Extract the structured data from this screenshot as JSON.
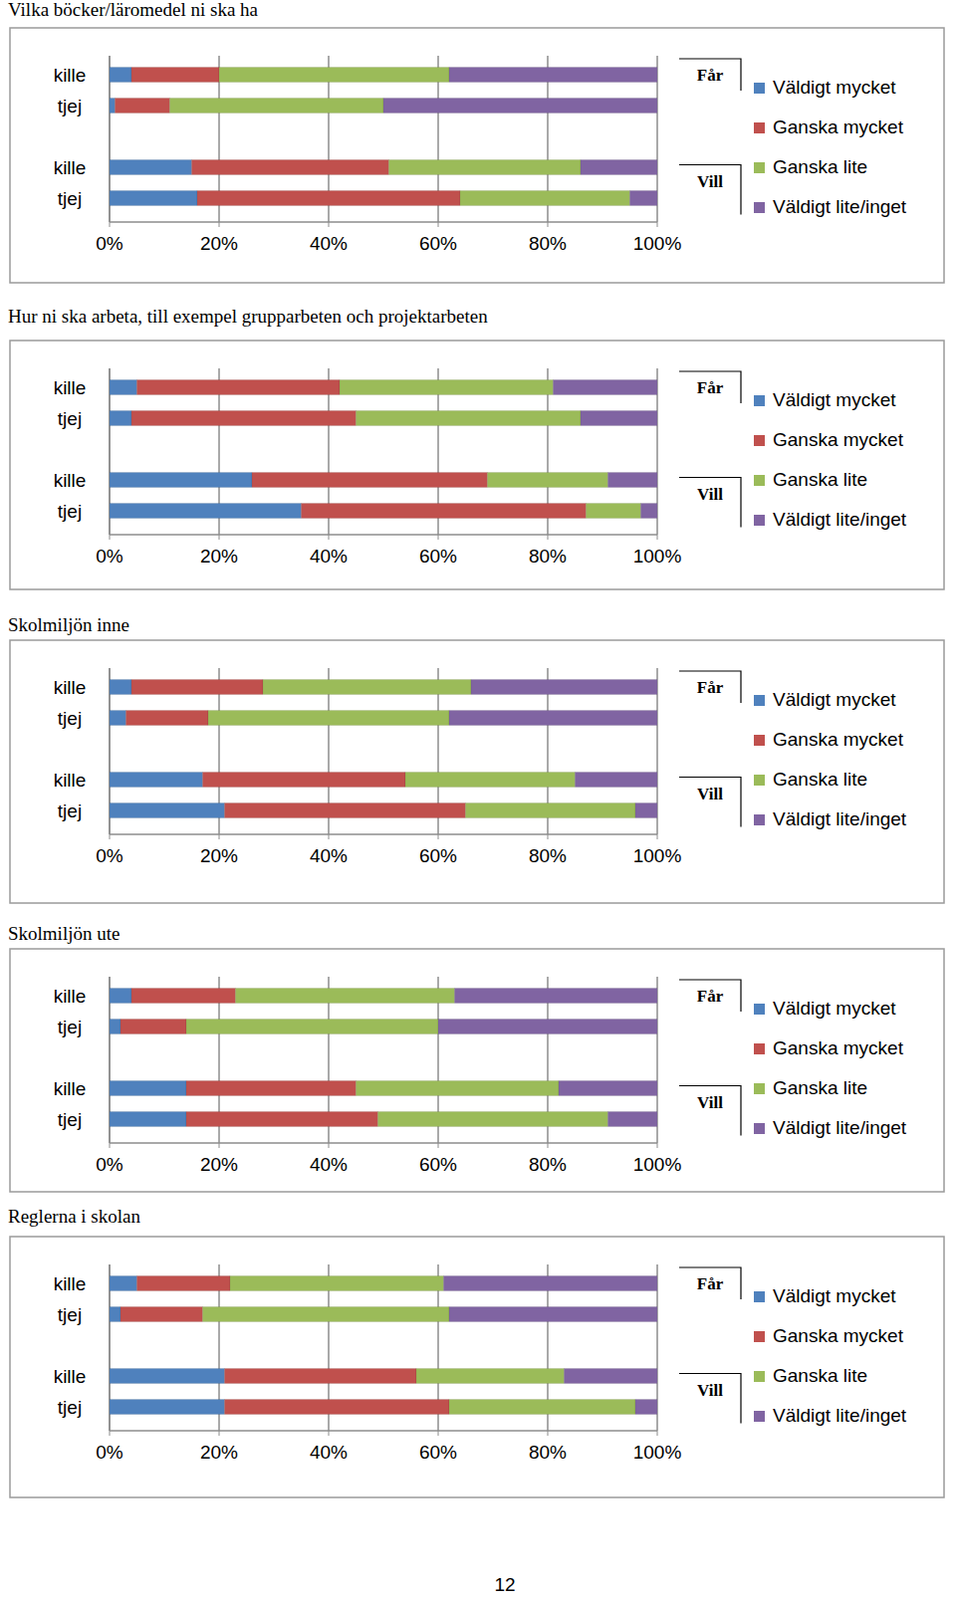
{
  "chart_data": [
    {
      "type": "bar",
      "title": "Vilka böcker/läromedel ni ska ha",
      "orientation": "horizontal",
      "stacked": true,
      "grid": true,
      "legend": "right",
      "categories": [
        "kille",
        "tjej",
        null,
        "kille",
        "tjej"
      ],
      "annotations": [
        "Får",
        "Vill"
      ],
      "series": [
        {
          "name": "Väldigt mycket",
          "color": "#4f81bd",
          "values": [
            4,
            1,
            null,
            15,
            16
          ]
        },
        {
          "name": "Ganska mycket",
          "color": "#c0504d",
          "values": [
            16,
            10,
            null,
            36,
            48
          ]
        },
        {
          "name": "Ganska lite",
          "color": "#9bbb59",
          "values": [
            42,
            39,
            null,
            35,
            31
          ]
        },
        {
          "name": "Väldigt lite/inget",
          "color": "#8064a2",
          "values": [
            38,
            50,
            null,
            14,
            5
          ]
        }
      ],
      "xlim": [
        0,
        100
      ],
      "xticks": [
        {
          "value": 0,
          "label": "0%"
        },
        {
          "value": 20,
          "label": "20%"
        },
        {
          "value": 40,
          "label": "40%"
        },
        {
          "value": 60,
          "label": "60%"
        },
        {
          "value": 80,
          "label": "80%"
        },
        {
          "value": 100,
          "label": "100%"
        }
      ]
    },
    {
      "type": "bar",
      "title": "Hur ni ska arbeta, till exempel grupparbeten och projektarbeten",
      "orientation": "horizontal",
      "stacked": true,
      "grid": true,
      "legend": "right",
      "categories": [
        "kille",
        "tjej",
        null,
        "kille",
        "tjej"
      ],
      "annotations": [
        "Får",
        "Vill"
      ],
      "series": [
        {
          "name": "Väldigt mycket",
          "color": "#4f81bd",
          "values": [
            5,
            4,
            null,
            26,
            35
          ]
        },
        {
          "name": "Ganska mycket",
          "color": "#c0504d",
          "values": [
            37,
            41,
            null,
            43,
            52
          ]
        },
        {
          "name": "Ganska lite",
          "color": "#9bbb59",
          "values": [
            39,
            41,
            null,
            22,
            10
          ]
        },
        {
          "name": "Väldigt lite/inget",
          "color": "#8064a2",
          "values": [
            19,
            14,
            null,
            9,
            3
          ]
        }
      ],
      "xlim": [
        0,
        100
      ],
      "xticks": [
        {
          "value": 0,
          "label": "0%"
        },
        {
          "value": 20,
          "label": "20%"
        },
        {
          "value": 40,
          "label": "40%"
        },
        {
          "value": 60,
          "label": "60%"
        },
        {
          "value": 80,
          "label": "80%"
        },
        {
          "value": 100,
          "label": "100%"
        }
      ]
    },
    {
      "type": "bar",
      "title": "Skolmiljön inne",
      "orientation": "horizontal",
      "stacked": true,
      "grid": true,
      "legend": "right",
      "categories": [
        "kille",
        "tjej",
        null,
        "kille",
        "tjej"
      ],
      "annotations": [
        "Får",
        "Vill"
      ],
      "series": [
        {
          "name": "Väldigt mycket",
          "color": "#4f81bd",
          "values": [
            4,
            3,
            null,
            17,
            21
          ]
        },
        {
          "name": "Ganska mycket",
          "color": "#c0504d",
          "values": [
            24,
            15,
            null,
            37,
            44
          ]
        },
        {
          "name": "Ganska lite",
          "color": "#9bbb59",
          "values": [
            38,
            44,
            null,
            31,
            31
          ]
        },
        {
          "name": "Väldigt lite/inget",
          "color": "#8064a2",
          "values": [
            34,
            38,
            null,
            15,
            4
          ]
        }
      ],
      "xlim": [
        0,
        100
      ],
      "xticks": [
        {
          "value": 0,
          "label": "0%"
        },
        {
          "value": 20,
          "label": "20%"
        },
        {
          "value": 40,
          "label": "40%"
        },
        {
          "value": 60,
          "label": "60%"
        },
        {
          "value": 80,
          "label": "80%"
        },
        {
          "value": 100,
          "label": "100%"
        }
      ]
    },
    {
      "type": "bar",
      "title": "Skolmiljön ute",
      "orientation": "horizontal",
      "stacked": true,
      "grid": true,
      "legend": "right",
      "categories": [
        "kille",
        "tjej",
        null,
        "kille",
        "tjej"
      ],
      "annotations": [
        "Får",
        "Vill"
      ],
      "series": [
        {
          "name": "Väldigt mycket",
          "color": "#4f81bd",
          "values": [
            4,
            2,
            null,
            14,
            14
          ]
        },
        {
          "name": "Ganska mycket",
          "color": "#c0504d",
          "values": [
            19,
            12,
            null,
            31,
            35
          ]
        },
        {
          "name": "Ganska lite",
          "color": "#9bbb59",
          "values": [
            40,
            46,
            null,
            37,
            42
          ]
        },
        {
          "name": "Väldigt lite/inget",
          "color": "#8064a2",
          "values": [
            37,
            40,
            null,
            18,
            9
          ]
        }
      ],
      "xlim": [
        0,
        100
      ],
      "xticks": [
        {
          "value": 0,
          "label": "0%"
        },
        {
          "value": 20,
          "label": "20%"
        },
        {
          "value": 40,
          "label": "40%"
        },
        {
          "value": 60,
          "label": "60%"
        },
        {
          "value": 80,
          "label": "80%"
        },
        {
          "value": 100,
          "label": "100%"
        }
      ]
    },
    {
      "type": "bar",
      "title": "Reglerna i skolan",
      "orientation": "horizontal",
      "stacked": true,
      "grid": true,
      "legend": "right",
      "categories": [
        "kille",
        "tjej",
        null,
        "kille",
        "tjej"
      ],
      "annotations": [
        "Får",
        "Vill"
      ],
      "series": [
        {
          "name": "Väldigt mycket",
          "color": "#4f81bd",
          "values": [
            5,
            2,
            null,
            21,
            21
          ]
        },
        {
          "name": "Ganska mycket",
          "color": "#c0504d",
          "values": [
            17,
            15,
            null,
            35,
            41
          ]
        },
        {
          "name": "Ganska lite",
          "color": "#9bbb59",
          "values": [
            39,
            45,
            null,
            27,
            34
          ]
        },
        {
          "name": "Väldigt lite/inget",
          "color": "#8064a2",
          "values": [
            39,
            38,
            null,
            17,
            4
          ]
        }
      ],
      "xlim": [
        0,
        100
      ],
      "xticks": [
        {
          "value": 0,
          "label": "0%"
        },
        {
          "value": 20,
          "label": "20%"
        },
        {
          "value": 40,
          "label": "40%"
        },
        {
          "value": 60,
          "label": "60%"
        },
        {
          "value": 80,
          "label": "80%"
        },
        {
          "value": 100,
          "label": "100%"
        }
      ]
    }
  ],
  "page_number": "12"
}
